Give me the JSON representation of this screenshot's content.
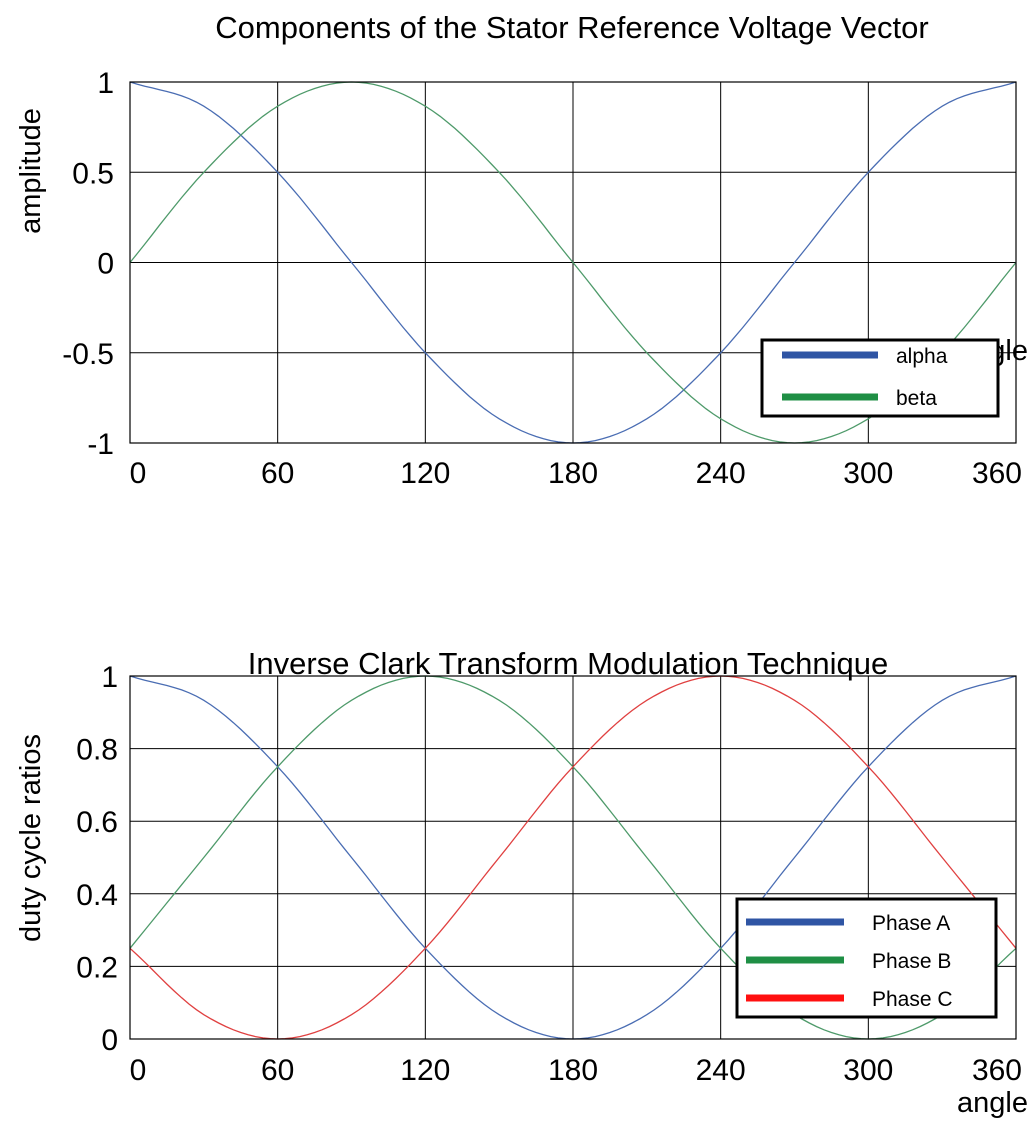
{
  "chart_data": [
    {
      "type": "line",
      "title": "Components of the Stator Reference Voltage Vector",
      "xlabel": "angle",
      "ylabel": "amplitude",
      "xlim": [
        0,
        360
      ],
      "ylim": [
        -1,
        1
      ],
      "xticks": [
        0,
        60,
        120,
        180,
        240,
        300,
        360
      ],
      "yticks": [
        -1,
        -0.5,
        0,
        0.5,
        1
      ],
      "xtick_labels": [
        "0",
        "60",
        "120",
        "180",
        "240",
        "300",
        "360"
      ],
      "ytick_labels": [
        "-1",
        "-0.5",
        "0",
        "0.5",
        "1"
      ],
      "grid": true,
      "legend_position": "bottom-right",
      "x": [
        0,
        30,
        60,
        90,
        120,
        150,
        180,
        210,
        240,
        270,
        300,
        330,
        360
      ],
      "series": [
        {
          "name": "alpha",
          "color": "#4a6db3",
          "legend_color": "#2f55a4",
          "values": [
            1,
            0.866,
            0.5,
            0,
            -0.5,
            -0.866,
            -1,
            -0.866,
            -0.5,
            0,
            0.5,
            0.866,
            1
          ]
        },
        {
          "name": "beta",
          "color": "#4e9a6a",
          "legend_color": "#1f8f45",
          "values": [
            0,
            0.5,
            0.866,
            1,
            0.866,
            0.5,
            0,
            -0.5,
            -0.866,
            -1,
            -0.866,
            -0.5,
            0
          ]
        }
      ]
    },
    {
      "type": "line",
      "title": "Inverse Clark Transform Modulation Technique",
      "xlabel": "angle",
      "ylabel": "duty cycle ratios",
      "xlim": [
        0,
        360
      ],
      "ylim": [
        0,
        1
      ],
      "xticks": [
        0,
        60,
        120,
        180,
        240,
        300,
        360
      ],
      "yticks": [
        0,
        0.2,
        0.4,
        0.6,
        0.8,
        1
      ],
      "xtick_labels": [
        "0",
        "60",
        "120",
        "180",
        "240",
        "300",
        "360"
      ],
      "ytick_labels": [
        "0",
        "0.2",
        "0.4",
        "0.6",
        "0.8",
        "1"
      ],
      "grid": true,
      "legend_position": "bottom-right",
      "x": [
        0,
        30,
        60,
        90,
        120,
        150,
        180,
        210,
        240,
        270,
        300,
        330,
        360
      ],
      "series": [
        {
          "name": "Phase A",
          "color": "#4a6db3",
          "legend_color": "#2f55a4",
          "values": [
            1,
            0.933,
            0.75,
            0.5,
            0.25,
            0.067,
            0,
            0.067,
            0.25,
            0.5,
            0.75,
            0.933,
            1
          ]
        },
        {
          "name": "Phase B",
          "color": "#4e9a6a",
          "legend_color": "#1f8f45",
          "values": [
            0.25,
            0.5,
            0.75,
            0.933,
            1,
            0.933,
            0.75,
            0.5,
            0.25,
            0.067,
            0,
            0.067,
            0.25
          ]
        },
        {
          "name": "Phase C",
          "color": "#e04040",
          "legend_color": "#ff1010",
          "values": [
            0.25,
            0.067,
            0,
            0.067,
            0.25,
            0.5,
            0.75,
            0.933,
            1,
            0.933,
            0.75,
            0.5,
            0.25
          ]
        }
      ]
    }
  ]
}
